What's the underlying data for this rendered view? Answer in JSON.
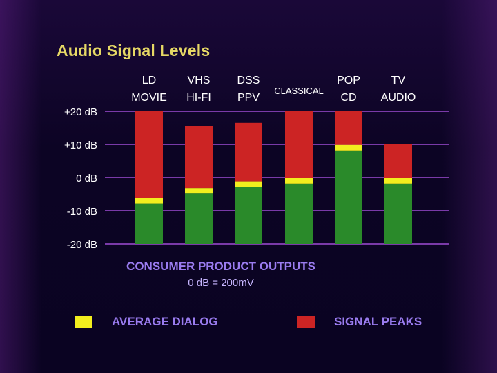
{
  "title": "Audio Signal Levels",
  "caption": {
    "line1": "CONSUMER PRODUCT OUTPUTS",
    "line2": "0 dB = 200mV"
  },
  "legend": [
    {
      "label": "AVERAGE DIALOG",
      "color": "#f2ee1e"
    },
    {
      "label": "SIGNAL PEAKS",
      "color": "#cc2424"
    }
  ],
  "chart_data": {
    "type": "bar",
    "title": "Audio Signal Levels",
    "xlabel": "CONSUMER PRODUCT OUTPUTS",
    "ylabel": "",
    "ylim": [
      -20,
      20
    ],
    "yticks": [
      20,
      10,
      0,
      -10,
      -20
    ],
    "ytick_labels": [
      "+20 dB",
      "+10 dB",
      "0 dB",
      "-10 dB",
      "-20 dB"
    ],
    "grid": true,
    "legend_position": "bottom",
    "categories": [
      [
        "LD",
        "MOVIE"
      ],
      [
        "VHS",
        "HI-FI"
      ],
      [
        "DSS",
        "PPV"
      ],
      [
        "CLASSICAL"
      ],
      [
        "POP",
        "CD"
      ],
      [
        "TV",
        "AUDIO"
      ]
    ],
    "series": [
      {
        "name": "AVERAGE DIALOG",
        "values": [
          -7,
          -4,
          -2,
          -1,
          9,
          -1
        ]
      },
      {
        "name": "SIGNAL PEAKS",
        "values": [
          20,
          15.5,
          16.5,
          20,
          20,
          10.2
        ]
      }
    ],
    "colors": {
      "body": "#2a8a2a",
      "peaks": "#cc2424",
      "dialog": "#f2ee1e",
      "grid": "#7a3aa8",
      "tick_text": "#ffffff"
    }
  }
}
